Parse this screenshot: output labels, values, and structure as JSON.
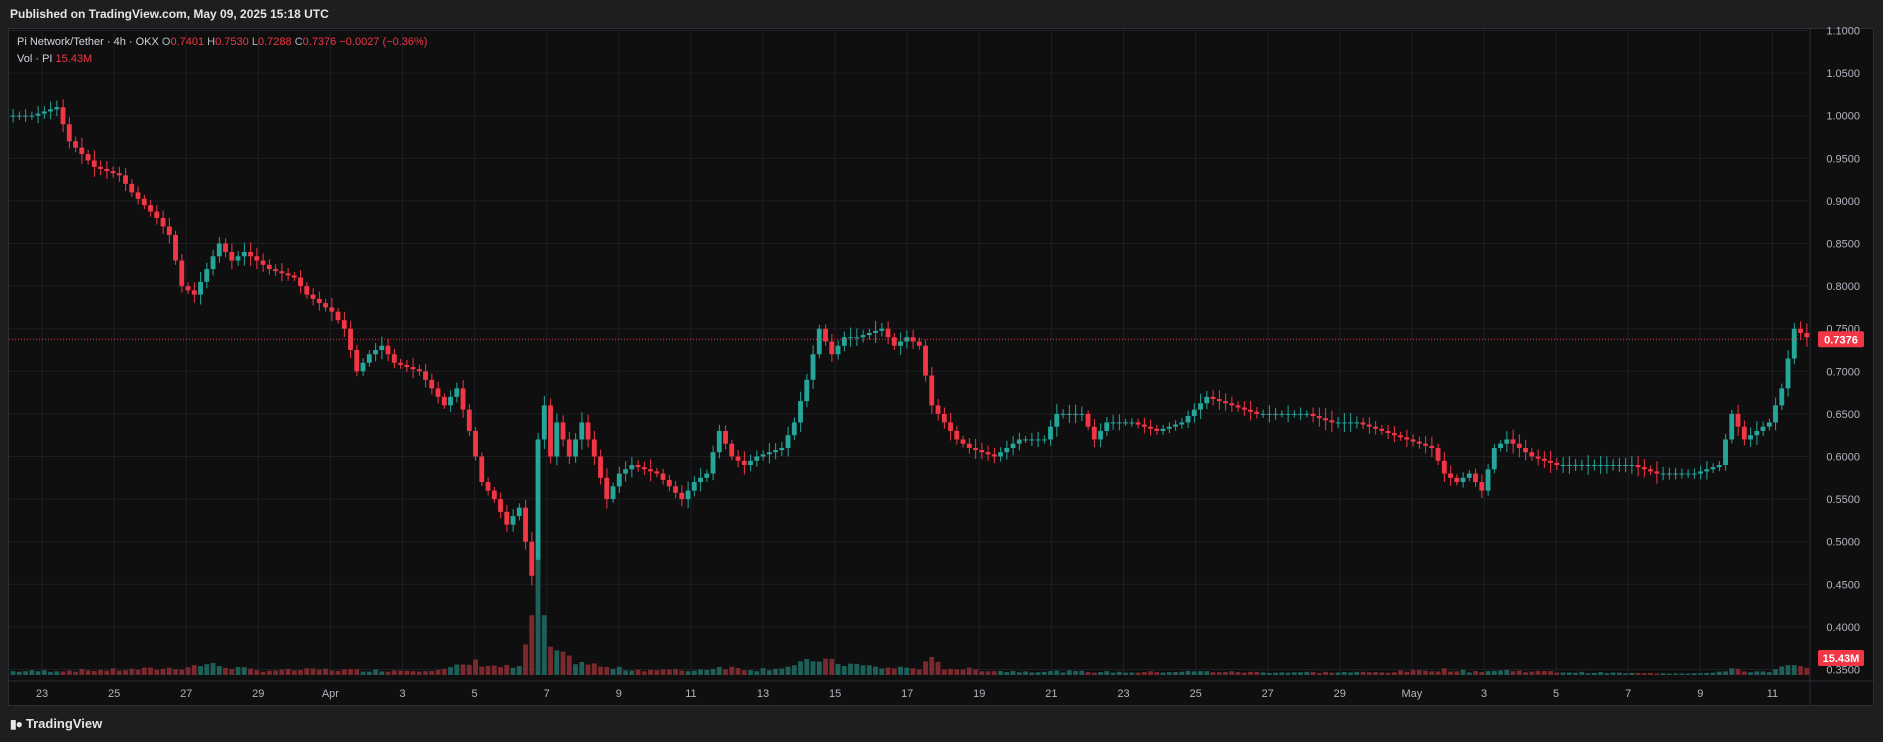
{
  "header": {
    "published": "Published on TradingView.com, May 09, 2025 15:18 UTC"
  },
  "legend": {
    "symbol": "Pi Network/Tether · 4h · OKX",
    "open_label": "O",
    "open": "0.7401",
    "high_label": "H",
    "high": "0.7530",
    "low_label": "L",
    "low": "0.7288",
    "close_label": "C",
    "close": "0.7376",
    "change": "−0.0027 (−0.36%)",
    "vol_label": "Vol · PI",
    "vol": "15.43M"
  },
  "footer": {
    "brand": "TradingView",
    "logo": "tradingview-logo-icon"
  },
  "colors": {
    "up": "#26a69a",
    "down": "#f23645",
    "vol_up": "#1e5f5a",
    "vol_down": "#7a2a2e",
    "grid": "#1c1f26"
  },
  "chart_data": {
    "type": "candlestick",
    "interval": "4h",
    "y_ticks": [
      "1.1000",
      "1.0500",
      "1.0000",
      "0.9500",
      "0.9000",
      "0.8500",
      "0.8000",
      "0.7500",
      "0.7000",
      "0.6500",
      "0.6000",
      "0.5500",
      "0.5000",
      "0.4500",
      "0.4000",
      "0.3500"
    ],
    "ylim": [
      0.35,
      1.1
    ],
    "x_ticks": [
      "23",
      "25",
      "27",
      "29",
      "Apr",
      "3",
      "5",
      "7",
      "9",
      "11",
      "13",
      "15",
      "17",
      "19",
      "21",
      "23",
      "25",
      "27",
      "29",
      "May",
      "3",
      "5",
      "7",
      "9",
      "11"
    ],
    "last_price_label": "0.7376",
    "last_price": 0.7376,
    "volume_label": "15.43M",
    "volume_last": 15.43,
    "price_anchors": [
      [
        0,
        1.0
      ],
      [
        4,
        1.0
      ],
      [
        8,
        1.01
      ],
      [
        10,
        0.97
      ],
      [
        14,
        0.94
      ],
      [
        18,
        0.93
      ],
      [
        20,
        0.91
      ],
      [
        24,
        0.88
      ],
      [
        26,
        0.86
      ],
      [
        28,
        0.8
      ],
      [
        30,
        0.79
      ],
      [
        32,
        0.82
      ],
      [
        34,
        0.85
      ],
      [
        36,
        0.83
      ],
      [
        38,
        0.84
      ],
      [
        42,
        0.82
      ],
      [
        46,
        0.81
      ],
      [
        48,
        0.79
      ],
      [
        52,
        0.77
      ],
      [
        54,
        0.75
      ],
      [
        56,
        0.7
      ],
      [
        58,
        0.72
      ],
      [
        60,
        0.73
      ],
      [
        62,
        0.71
      ],
      [
        66,
        0.7
      ],
      [
        70,
        0.66
      ],
      [
        72,
        0.68
      ],
      [
        74,
        0.63
      ],
      [
        76,
        0.57
      ],
      [
        78,
        0.55
      ],
      [
        80,
        0.52
      ],
      [
        82,
        0.54
      ],
      [
        84,
        0.46
      ],
      [
        85,
        0.62
      ],
      [
        86,
        0.66
      ],
      [
        87,
        0.6
      ],
      [
        88,
        0.64
      ],
      [
        90,
        0.6
      ],
      [
        92,
        0.64
      ],
      [
        94,
        0.6
      ],
      [
        96,
        0.55
      ],
      [
        98,
        0.58
      ],
      [
        100,
        0.59
      ],
      [
        104,
        0.58
      ],
      [
        108,
        0.55
      ],
      [
        110,
        0.57
      ],
      [
        112,
        0.58
      ],
      [
        114,
        0.63
      ],
      [
        116,
        0.6
      ],
      [
        118,
        0.59
      ],
      [
        120,
        0.6
      ],
      [
        124,
        0.61
      ],
      [
        126,
        0.64
      ],
      [
        128,
        0.69
      ],
      [
        130,
        0.75
      ],
      [
        132,
        0.72
      ],
      [
        134,
        0.74
      ],
      [
        136,
        0.74
      ],
      [
        140,
        0.75
      ],
      [
        142,
        0.73
      ],
      [
        144,
        0.74
      ],
      [
        146,
        0.73
      ],
      [
        148,
        0.66
      ],
      [
        150,
        0.64
      ],
      [
        152,
        0.62
      ],
      [
        154,
        0.61
      ],
      [
        158,
        0.6
      ],
      [
        162,
        0.62
      ],
      [
        166,
        0.62
      ],
      [
        168,
        0.65
      ],
      [
        172,
        0.65
      ],
      [
        174,
        0.62
      ],
      [
        176,
        0.64
      ],
      [
        180,
        0.64
      ],
      [
        184,
        0.63
      ],
      [
        188,
        0.64
      ],
      [
        192,
        0.67
      ],
      [
        196,
        0.66
      ],
      [
        200,
        0.65
      ],
      [
        204,
        0.65
      ],
      [
        208,
        0.65
      ],
      [
        212,
        0.64
      ],
      [
        216,
        0.64
      ],
      [
        220,
        0.63
      ],
      [
        224,
        0.62
      ],
      [
        228,
        0.61
      ],
      [
        230,
        0.58
      ],
      [
        232,
        0.57
      ],
      [
        234,
        0.58
      ],
      [
        236,
        0.56
      ],
      [
        238,
        0.61
      ],
      [
        240,
        0.62
      ],
      [
        244,
        0.6
      ],
      [
        248,
        0.59
      ],
      [
        252,
        0.59
      ],
      [
        256,
        0.59
      ],
      [
        260,
        0.59
      ],
      [
        264,
        0.58
      ],
      [
        266,
        0.58
      ],
      [
        270,
        0.58
      ],
      [
        274,
        0.59
      ],
      [
        276,
        0.65
      ],
      [
        278,
        0.62
      ],
      [
        282,
        0.64
      ],
      [
        284,
        0.68
      ],
      [
        286,
        0.75
      ],
      [
        288,
        0.74
      ]
    ],
    "volume_anchors": [
      [
        0,
        4
      ],
      [
        10,
        5
      ],
      [
        20,
        6
      ],
      [
        28,
        8
      ],
      [
        32,
        12
      ],
      [
        40,
        5
      ],
      [
        50,
        6
      ],
      [
        60,
        5
      ],
      [
        70,
        6
      ],
      [
        75,
        14
      ],
      [
        78,
        10
      ],
      [
        82,
        8
      ],
      [
        84,
        60
      ],
      [
        85,
        100
      ],
      [
        86,
        70
      ],
      [
        87,
        28
      ],
      [
        88,
        22
      ],
      [
        92,
        14
      ],
      [
        96,
        8
      ],
      [
        100,
        6
      ],
      [
        110,
        5
      ],
      [
        114,
        9
      ],
      [
        120,
        6
      ],
      [
        126,
        10
      ],
      [
        130,
        18
      ],
      [
        132,
        14
      ],
      [
        140,
        8
      ],
      [
        146,
        8
      ],
      [
        148,
        16
      ],
      [
        150,
        8
      ],
      [
        160,
        4
      ],
      [
        170,
        4
      ],
      [
        180,
        3
      ],
      [
        190,
        4
      ],
      [
        200,
        3
      ],
      [
        210,
        3
      ],
      [
        220,
        3
      ],
      [
        230,
        6
      ],
      [
        234,
        4
      ],
      [
        240,
        5
      ],
      [
        250,
        3
      ],
      [
        260,
        2
      ],
      [
        270,
        2
      ],
      [
        275,
        4
      ],
      [
        276,
        7
      ],
      [
        278,
        4
      ],
      [
        282,
        4
      ],
      [
        284,
        8
      ],
      [
        286,
        10
      ],
      [
        288,
        7
      ]
    ]
  }
}
